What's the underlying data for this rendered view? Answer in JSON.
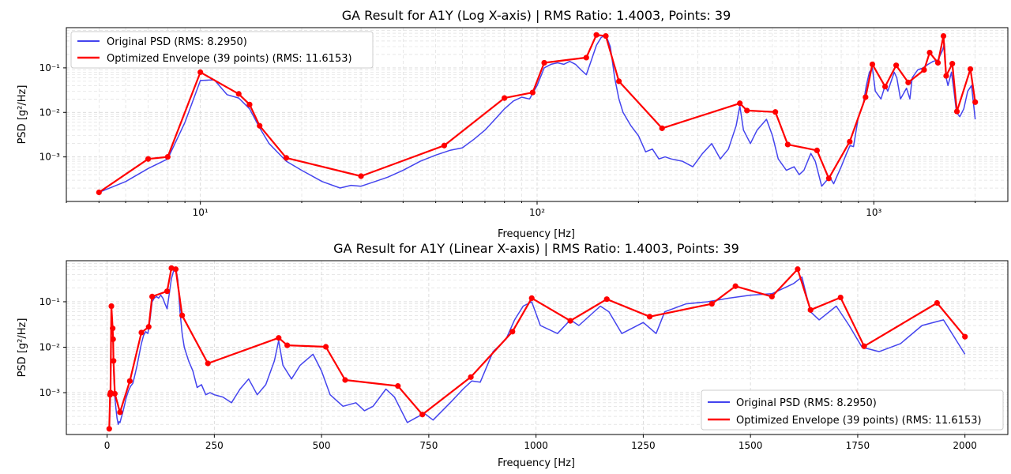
{
  "colors": {
    "original": "#4444ee",
    "envelope": "#ff0000",
    "grid": "#d9d9d9"
  },
  "chart_data": [
    {
      "type": "line",
      "title": "GA Result for A1Y (Log X-axis) | RMS Ratio: 1.4003, Points: 39",
      "xlabel": "Frequency [Hz]",
      "ylabel": "PSD [g²/Hz]",
      "xscale": "log",
      "yscale": "log",
      "xlim": [
        4,
        2500
      ],
      "ylim": [
        0.0001,
        0.8
      ],
      "xticks": [
        "10¹",
        "10²",
        "10³"
      ],
      "yticks": [
        "10⁻³",
        "10⁻²",
        "10⁻¹"
      ],
      "grid": true,
      "legend_position": "top-left",
      "series": [
        {
          "name": "Original PSD (RMS: 8.2950)",
          "x": [
            5,
            6,
            7,
            8,
            9,
            10,
            11,
            12,
            13,
            14,
            15,
            16,
            18,
            20,
            23,
            26,
            28,
            30,
            33,
            36,
            40,
            45,
            50,
            55,
            60,
            65,
            70,
            75,
            80,
            85,
            90,
            95,
            100,
            105,
            110,
            115,
            120,
            125,
            130,
            135,
            140,
            145,
            150,
            155,
            160,
            165,
            170,
            175,
            180,
            190,
            200,
            210,
            220,
            230,
            240,
            250,
            270,
            290,
            310,
            330,
            350,
            370,
            390,
            400,
            410,
            430,
            450,
            480,
            500,
            520,
            550,
            580,
            600,
            620,
            650,
            670,
            700,
            720,
            740,
            760,
            800,
            830,
            850,
            870,
            900,
            930,
            950,
            970,
            990,
            1010,
            1050,
            1080,
            1100,
            1150,
            1170,
            1200,
            1250,
            1280,
            1300,
            1350,
            1400,
            1450,
            1500,
            1550,
            1600,
            1620,
            1640,
            1660,
            1700,
            1730,
            1760,
            1800,
            1850,
            1900,
            1950,
            2000
          ],
          "y": [
            0.00016,
            0.00028,
            0.00055,
            0.0009,
            0.006,
            0.052,
            0.054,
            0.025,
            0.021,
            0.012,
            0.0045,
            0.002,
            0.0008,
            0.0005,
            0.00028,
            0.0002,
            0.00023,
            0.00022,
            0.00028,
            0.00035,
            0.0005,
            0.0008,
            0.0011,
            0.0014,
            0.0016,
            0.0025,
            0.004,
            0.007,
            0.012,
            0.018,
            0.022,
            0.02,
            0.04,
            0.1,
            0.12,
            0.13,
            0.12,
            0.14,
            0.12,
            0.09,
            0.07,
            0.15,
            0.32,
            0.48,
            0.55,
            0.3,
            0.06,
            0.02,
            0.01,
            0.005,
            0.003,
            0.0013,
            0.0015,
            0.0009,
            0.001,
            0.0009,
            0.0008,
            0.0006,
            0.0012,
            0.002,
            0.0009,
            0.0015,
            0.005,
            0.014,
            0.004,
            0.002,
            0.004,
            0.007,
            0.003,
            0.0009,
            0.0005,
            0.0006,
            0.0004,
            0.0005,
            0.0012,
            0.0008,
            0.00022,
            0.00028,
            0.00035,
            0.00025,
            0.0006,
            0.0012,
            0.0018,
            0.0017,
            0.008,
            0.015,
            0.04,
            0.08,
            0.1,
            0.03,
            0.02,
            0.04,
            0.03,
            0.08,
            0.06,
            0.02,
            0.035,
            0.02,
            0.06,
            0.09,
            0.1,
            0.12,
            0.14,
            0.15,
            0.25,
            0.35,
            0.06,
            0.04,
            0.08,
            0.03,
            0.01,
            0.008,
            0.012,
            0.03,
            0.04,
            0.007
          ]
        },
        {
          "name": "Optimized Envelope (39 points) (RMS: 11.6153)",
          "x": [
            5,
            7,
            8,
            10,
            13,
            14,
            15,
            18,
            30,
            53,
            80,
            97,
            105,
            140,
            150,
            160,
            175,
            235,
            400,
            420,
            510,
            555,
            678,
            735,
            848,
            945,
            990,
            1080,
            1165,
            1265,
            1410,
            1465,
            1550,
            1610,
            1640,
            1710,
            1765,
            1935,
            2000
          ],
          "y": [
            0.00016,
            0.0009,
            0.001,
            0.08,
            0.026,
            0.015,
            0.005,
            0.00095,
            0.00037,
            0.0018,
            0.021,
            0.028,
            0.13,
            0.17,
            0.55,
            0.52,
            0.05,
            0.0044,
            0.016,
            0.011,
            0.0102,
            0.0019,
            0.0014,
            0.00033,
            0.0022,
            0.022,
            0.12,
            0.038,
            0.114,
            0.047,
            0.09,
            0.22,
            0.13,
            0.52,
            0.066,
            0.124,
            0.0105,
            0.094,
            0.017
          ]
        }
      ]
    },
    {
      "type": "line",
      "title": "GA Result for A1Y (Linear X-axis) | RMS Ratio: 1.4003, Points: 39",
      "xlabel": "Frequency [Hz]",
      "ylabel": "PSD [g²/Hz]",
      "xscale": "linear",
      "yscale": "log",
      "xlim": [
        -95,
        2100
      ],
      "ylim": [
        0.00012,
        0.8
      ],
      "xticks": [
        "0",
        "250",
        "500",
        "750",
        "1000",
        "1250",
        "1500",
        "1750",
        "2000"
      ],
      "yticks": [
        "10⁻³",
        "10⁻²",
        "10⁻¹"
      ],
      "grid": true,
      "legend_position": "bottom-right",
      "series_ref": "same data as log-x chart"
    }
  ]
}
